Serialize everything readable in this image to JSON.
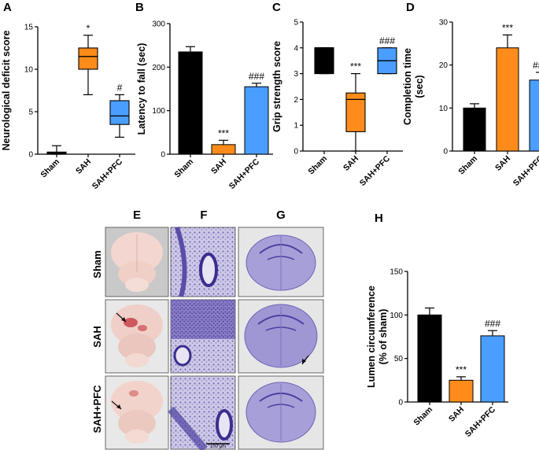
{
  "colors": {
    "sham": "#000000",
    "sah": "#ff8c1a",
    "pfc": "#4a9eff",
    "stain": "#3a2f8f",
    "brain": "#f2d6cf"
  },
  "chart_data": [
    {
      "id": "A",
      "panel": "A",
      "type": "box",
      "ylabel": "Neurological deficit score",
      "categories": [
        "Sham",
        "SAH",
        "SAH+PFC"
      ],
      "ylim": [
        0,
        15
      ],
      "yticks": [
        0,
        5,
        10,
        15
      ],
      "boxes": [
        {
          "min": 0,
          "q1": 0,
          "median": 0.1,
          "q3": 0.25,
          "max": 1
        },
        {
          "min": 7,
          "q1": 10,
          "median": 11.5,
          "q3": 12.5,
          "max": 14
        },
        {
          "min": 2,
          "q1": 3.5,
          "median": 4.5,
          "q3": 6.3,
          "max": 7
        }
      ],
      "annotations": [
        "",
        "*",
        "#"
      ]
    },
    {
      "id": "B",
      "panel": "B",
      "type": "bar",
      "ylabel": "Latency to fall (sec)",
      "categories": [
        "Sham",
        "SAH",
        "SAH+PFC"
      ],
      "ylim": [
        0,
        300
      ],
      "yticks": [
        0,
        100,
        200,
        300
      ],
      "values": [
        235,
        22,
        155
      ],
      "errors": [
        12,
        10,
        8
      ],
      "annotations": [
        "",
        "***",
        "###"
      ]
    },
    {
      "id": "C",
      "panel": "C",
      "type": "box",
      "ylabel": "Grip strength score",
      "categories": [
        "Sham",
        "SAH",
        "SAH+PFC"
      ],
      "ylim": [
        0,
        5
      ],
      "yticks": [
        0,
        1,
        2,
        3,
        4,
        5
      ],
      "boxes": [
        {
          "min": 3,
          "q1": 3,
          "median": 4,
          "q3": 4,
          "max": 4
        },
        {
          "min": 0,
          "q1": 0.75,
          "median": 2,
          "q3": 2.25,
          "max": 3
        },
        {
          "min": 3,
          "q1": 3,
          "median": 3.5,
          "q3": 4,
          "max": 4
        }
      ],
      "annotations": [
        "",
        "***",
        "###"
      ]
    },
    {
      "id": "D",
      "panel": "D",
      "type": "bar",
      "ylabel": "Completion time",
      "ylabel2": "(sec)",
      "categories": [
        "Sham",
        "SAH",
        "SAH+PFC"
      ],
      "ylim": [
        0,
        30
      ],
      "yticks": [
        0,
        10,
        20,
        30
      ],
      "values": [
        10,
        24,
        16.5
      ],
      "errors": [
        1,
        3,
        1.8
      ],
      "annotations": [
        "",
        "***",
        "###"
      ]
    },
    {
      "id": "H",
      "panel": "H",
      "type": "bar",
      "ylabel": "Lumen circumference",
      "ylabel2": "(% of sham)",
      "categories": [
        "Sham",
        "SAH",
        "SAH+PFC"
      ],
      "ylim": [
        0,
        150
      ],
      "yticks": [
        0,
        50,
        100,
        150
      ],
      "values": [
        100,
        25,
        76
      ],
      "errors": [
        8,
        4,
        6
      ],
      "annotations": [
        "",
        "***",
        "###"
      ]
    }
  ],
  "histology": {
    "column_labels": [
      "E",
      "F",
      "G"
    ],
    "row_labels": [
      "Sham",
      "SAH",
      "SAH+PFC"
    ],
    "scale_bar": "100 μm"
  }
}
